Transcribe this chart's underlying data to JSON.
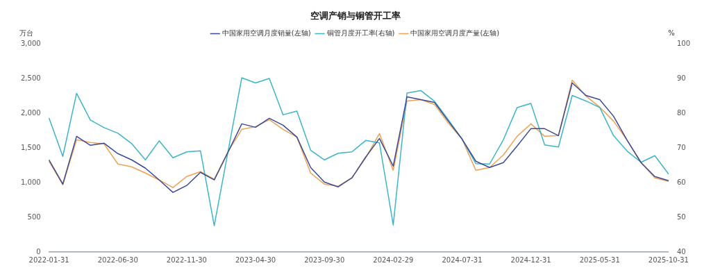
{
  "chart_data": {
    "type": "line",
    "title": "空调产销与铜管开工率",
    "ylabel": "万台",
    "y2label": "%",
    "categories": [
      "2022-01-31",
      null,
      null,
      null,
      null,
      "2022-06-30",
      null,
      null,
      null,
      null,
      "2022-11-30",
      null,
      null,
      null,
      null,
      "2023-04-30",
      null,
      null,
      null,
      null,
      "2023-09-30",
      null,
      null,
      null,
      null,
      "2024-02-29",
      null,
      null,
      null,
      null,
      "2024-07-31",
      null,
      null,
      null,
      null,
      "2024-12-31",
      null,
      null,
      null,
      null,
      "2025-05-31",
      null,
      null,
      null,
      null,
      "2025-10-31"
    ],
    "series": [
      {
        "name": "中国家用空调月度销量(左轴)",
        "color": "#3a4a9a",
        "values": [
          1330,
          980,
          1670,
          1540,
          1570,
          1420,
          1330,
          1210,
          1040,
          860,
          960,
          1150,
          1040,
          1440,
          1850,
          1800,
          1930,
          1830,
          1660,
          1220,
          1010,
          940,
          1070,
          1370,
          1640,
          1240,
          2240,
          2200,
          2160,
          1890,
          1630,
          1310,
          1220,
          1290,
          1530,
          1780,
          1780,
          1680,
          2440,
          2260,
          2200,
          1960,
          1610,
          1290,
          1090,
          1030
        ]
      },
      {
        "name": "铜管月度开工率(右轴)",
        "color": "#3bb5c9",
        "axis": "y2",
        "values": [
          78.7,
          67.6,
          85.8,
          78.1,
          75.9,
          74.3,
          71.3,
          66.6,
          72.1,
          67.2,
          68.9,
          69.2,
          47.6,
          69.0,
          90.3,
          88.8,
          90.1,
          79.6,
          80.7,
          69.4,
          66.6,
          68.5,
          68.9,
          72.2,
          71.5,
          47.8,
          85.9,
          86.6,
          83.5,
          78.2,
          72.6,
          65.5,
          65.4,
          72.4,
          81.7,
          82.9,
          70.9,
          70.3,
          85.2,
          83.6,
          81.7,
          73.6,
          69.1,
          65.9,
          67.8,
          62.5
        ]
      },
      {
        "name": "中国家用空调月度产量(左轴)",
        "color": "#f0a050",
        "values": [
          1310,
          970,
          1620,
          1580,
          1560,
          1270,
          1230,
          1140,
          1040,
          930,
          1090,
          1160,
          1050,
          1450,
          1770,
          1810,
          1910,
          1770,
          1660,
          1140,
          980,
          950,
          1070,
          1360,
          1710,
          1180,
          2180,
          2200,
          2130,
          1860,
          1630,
          1180,
          1220,
          1400,
          1670,
          1850,
          1670,
          1680,
          2480,
          2250,
          2090,
          1890,
          1610,
          1290,
          1070,
          1020
        ]
      }
    ],
    "ylim": [
      0,
      3000
    ],
    "yticks": [
      0,
      {
        "value": 500,
        "label": "500"
      },
      {
        "value": 1000,
        "label": "1,000"
      },
      {
        "value": 1500,
        "label": "1,500"
      },
      {
        "value": 2000,
        "label": "2,000"
      },
      {
        "value": 2500,
        "label": "2,500"
      },
      {
        "value": 3000,
        "label": "3,000"
      }
    ],
    "y2lim": [
      40,
      100
    ],
    "y2ticks": [
      40,
      50,
      60,
      70,
      80,
      90,
      100
    ],
    "legend": "top",
    "grid": false,
    "marker": "none",
    "line_style": "solid"
  }
}
